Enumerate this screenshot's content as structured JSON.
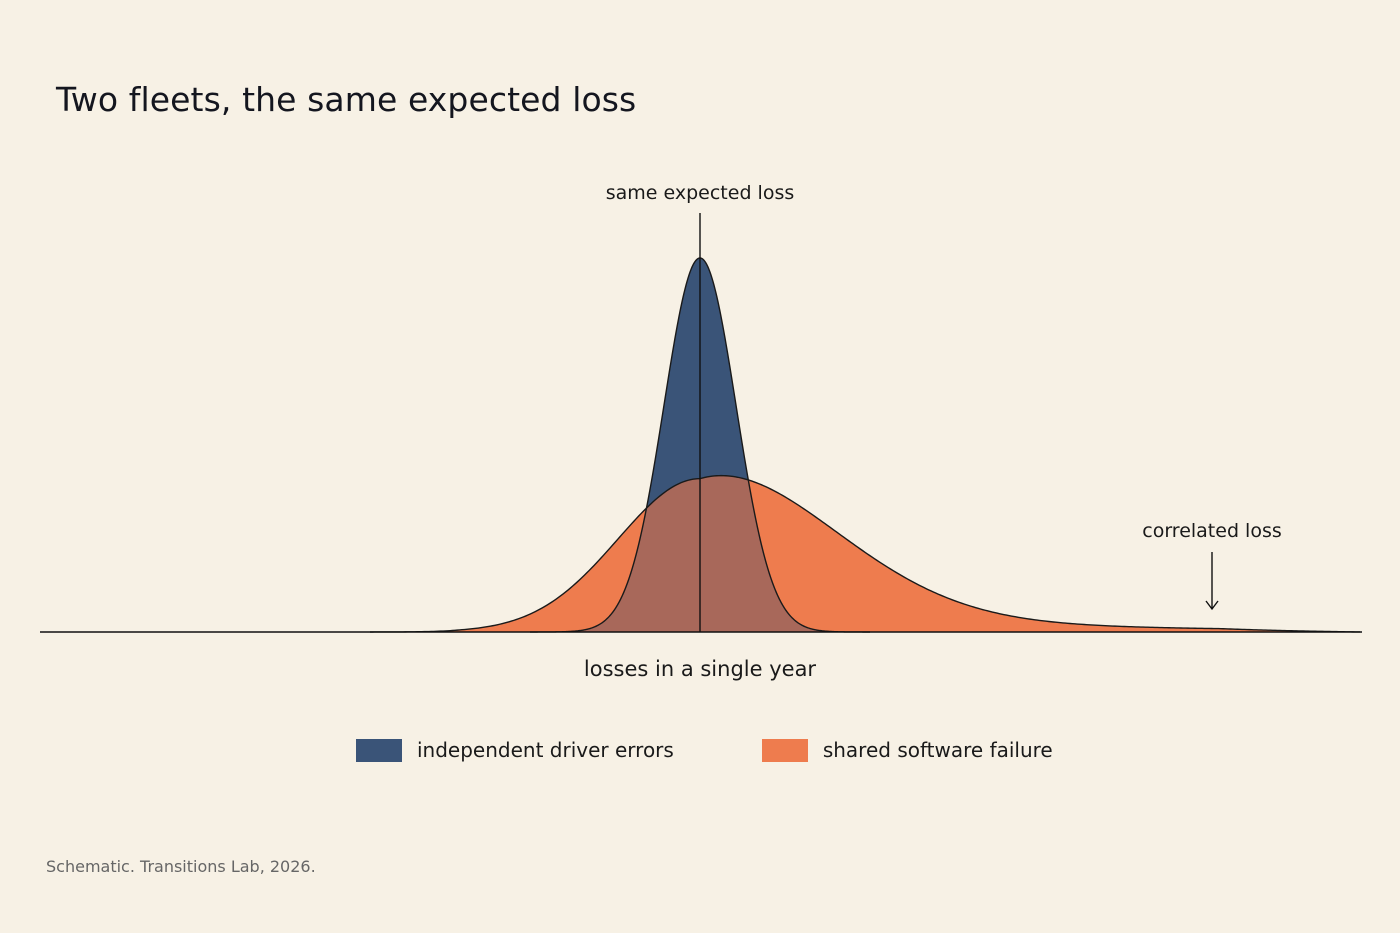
{
  "title": "Two fleets, the same expected loss",
  "source": "Schematic. Transitions Lab, 2026.",
  "colors": {
    "background": "#f7f1e5",
    "independent": "#3a5478",
    "shared": "#ee7c4e",
    "overlap": "#a8685a"
  },
  "chart_data": {
    "type": "area",
    "xlabel": "losses in a single year",
    "ylabel": "",
    "grid": false,
    "legend_position": "bottom-center",
    "x_range": [
      -3.3,
      6.6
    ],
    "y_range": [
      0,
      1.0
    ],
    "series": [
      {
        "name": "independent driver errors",
        "distribution": "symmetric, narrow",
        "peak": 1.0,
        "x": [
          -1.4,
          -1.0,
          -0.6,
          -0.3,
          0,
          0.3,
          0.6,
          1.0,
          1.4
        ],
        "values": [
          0.01,
          0.08,
          0.4,
          0.8,
          1.0,
          0.8,
          0.4,
          0.08,
          0.01
        ]
      },
      {
        "name": "shared software failure",
        "distribution": "right-skewed, long tail",
        "peak": 0.41,
        "x": [
          -2.7,
          -2.0,
          -1.5,
          -1.0,
          -0.5,
          0,
          0.7,
          1.5,
          2.5,
          3.5,
          4.5,
          5.5,
          6.5
        ],
        "values": [
          0.0,
          0.03,
          0.09,
          0.2,
          0.33,
          0.41,
          0.37,
          0.23,
          0.12,
          0.07,
          0.04,
          0.02,
          0.0
        ]
      }
    ],
    "annotations": [
      {
        "label": "same expected loss",
        "x": 0
      },
      {
        "label": "correlated loss",
        "x": 3.85
      }
    ]
  }
}
